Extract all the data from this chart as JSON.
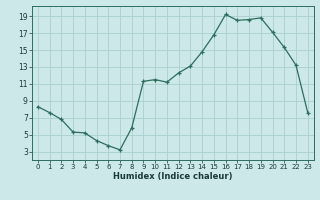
{
  "x": [
    0,
    1,
    2,
    3,
    4,
    5,
    6,
    7,
    8,
    9,
    10,
    11,
    12,
    13,
    14,
    15,
    16,
    17,
    18,
    19,
    20,
    21,
    22,
    23
  ],
  "y": [
    8.3,
    7.6,
    6.8,
    5.3,
    5.2,
    4.3,
    3.7,
    3.2,
    5.8,
    11.3,
    11.5,
    11.2,
    12.3,
    13.1,
    14.8,
    16.8,
    19.2,
    18.5,
    18.6,
    18.8,
    17.1,
    15.3,
    13.2,
    7.6
  ],
  "xlabel": "Humidex (Indice chaleur)",
  "xlim": [
    -0.5,
    23.5
  ],
  "ylim": [
    2.0,
    20.2
  ],
  "yticks": [
    3,
    5,
    7,
    9,
    11,
    13,
    15,
    17,
    19
  ],
  "xticks": [
    0,
    1,
    2,
    3,
    4,
    5,
    6,
    7,
    8,
    9,
    10,
    11,
    12,
    13,
    14,
    15,
    16,
    17,
    18,
    19,
    20,
    21,
    22,
    23
  ],
  "line_color": "#2d6e5e",
  "marker": "+",
  "bg_color": "#cce8e8",
  "grid_color": "#aad0d0",
  "tick_label_fontsize": 5.0,
  "xlabel_fontsize": 6.0
}
